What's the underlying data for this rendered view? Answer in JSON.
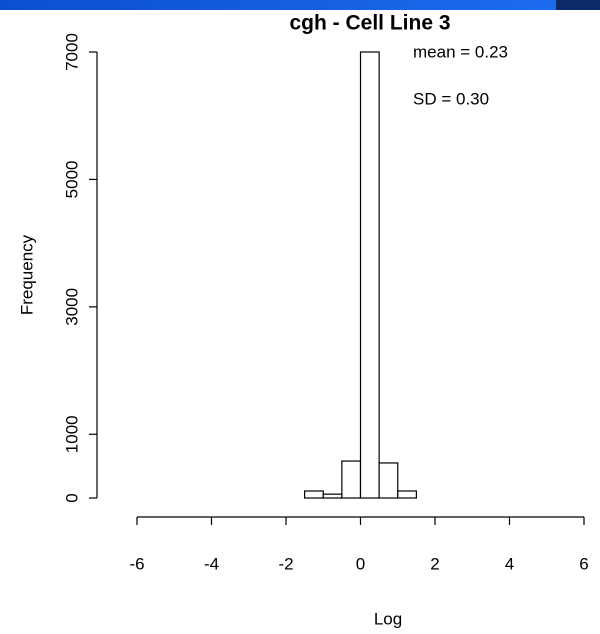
{
  "chart_data": {
    "type": "histogram",
    "title": "cgh - Cell Line 3",
    "annotations": [
      "mean =  0.23",
      "SD =  0.30"
    ],
    "x_label": "Log",
    "y_label": "Frequency",
    "bins": [
      -6.5,
      -6,
      -5.5,
      -5,
      -4.5,
      -4,
      -3.5,
      -3,
      -2.5,
      -2,
      -1.5,
      -1,
      -0.5,
      0,
      0.5,
      1,
      1.5,
      2,
      2.5,
      3,
      3.5,
      4,
      4.5,
      5,
      5.5,
      6,
      6.5
    ],
    "counts": [
      0,
      0,
      0,
      0,
      0,
      0,
      0,
      0,
      0,
      0,
      110,
      60,
      580,
      7000,
      550,
      110,
      0,
      0,
      0,
      0,
      0,
      0,
      0,
      0,
      0,
      0
    ],
    "color": "#ffffff",
    "xlim": [
      -6,
      6
    ],
    "xticks": [
      -6,
      -4,
      -2,
      0,
      2,
      4,
      6
    ],
    "ylim": [
      0,
      7000
    ],
    "yticks": [
      0,
      1000,
      3000,
      5000,
      7000
    ]
  }
}
